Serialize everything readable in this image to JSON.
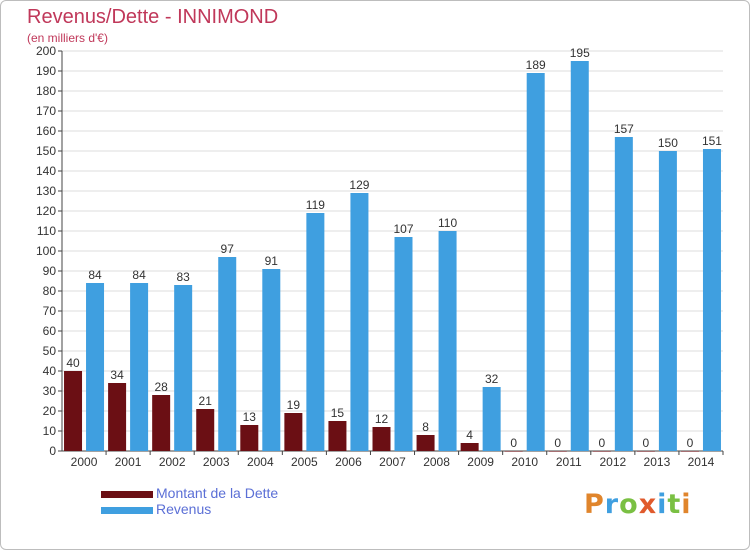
{
  "title": "Revenus/Dette - INNIMOND",
  "subtitle": "(en milliers d'€)",
  "colors": {
    "dette": "#6b0f14",
    "revenus": "#3f9fe0",
    "grid": "#dcdcdc",
    "axis": "#444444"
  },
  "logo": {
    "text": "Proxiti"
  },
  "chart_data": {
    "type": "bar",
    "categories": [
      "2000",
      "2001",
      "2002",
      "2003",
      "2004",
      "2005",
      "2006",
      "2007",
      "2008",
      "2009",
      "2010",
      "2011",
      "2012",
      "2013",
      "2014"
    ],
    "series": [
      {
        "name": "Montant de la Dette",
        "values": [
          40,
          34,
          28,
          21,
          13,
          19,
          15,
          12,
          8,
          4,
          0,
          0,
          0,
          0,
          0
        ]
      },
      {
        "name": "Revenus",
        "values": [
          84,
          84,
          83,
          97,
          91,
          119,
          129,
          107,
          110,
          32,
          189,
          195,
          157,
          150,
          151
        ]
      }
    ],
    "ylim": [
      0,
      200
    ],
    "yticks": [
      0,
      10,
      20,
      30,
      40,
      50,
      60,
      70,
      80,
      90,
      100,
      110,
      120,
      130,
      140,
      150,
      160,
      170,
      180,
      190,
      200
    ],
    "grid": true,
    "legend": "bottom-left"
  }
}
